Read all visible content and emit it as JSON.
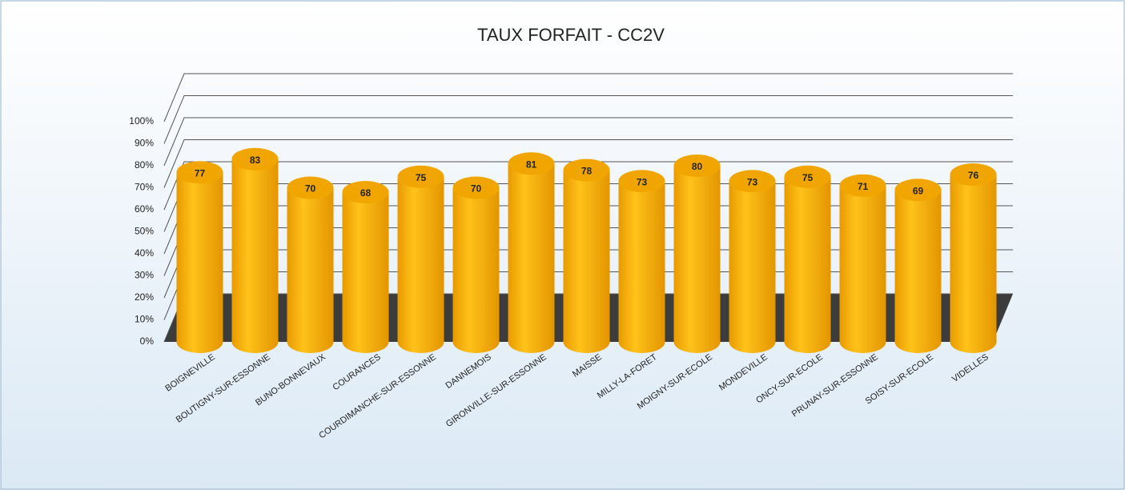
{
  "chart_data": {
    "type": "bar",
    "title": "TAUX FORFAIT - CC2V",
    "categories": [
      "BOIGNEVILLE",
      "BOUTIGNY-SUR-ESSONNE",
      "BUNO-BONNEVAUX",
      "COURANCES",
      "COURDIMANCHE-SUR-ESSONNE",
      "DANNEMOIS",
      "GIRONVILLE-SUR-ESSONNE",
      "MAISSE",
      "MILLY-LA-FORET",
      "MOIGNY-SUR-ECOLE",
      "MONDEVILLE",
      "ONCY-SUR-ECOLE",
      "PRUNAY-SUR-ESSONNE",
      "SOISY-SUR-ECOLE",
      "VIDELLES"
    ],
    "values": [
      77,
      83,
      70,
      68,
      75,
      70,
      81,
      78,
      73,
      80,
      73,
      75,
      71,
      69,
      76
    ],
    "color": "#f2a900",
    "ylim": [
      0,
      100
    ],
    "yticks": [
      {
        "value": 0,
        "label": "0%"
      },
      {
        "value": 10,
        "label": "10%"
      },
      {
        "value": 20,
        "label": "20%"
      },
      {
        "value": 30,
        "label": "30%"
      },
      {
        "value": 40,
        "label": "40%"
      },
      {
        "value": 50,
        "label": "50%"
      },
      {
        "value": 60,
        "label": "60%"
      },
      {
        "value": 70,
        "label": "70%"
      },
      {
        "value": 80,
        "label": "80%"
      },
      {
        "value": 90,
        "label": "90%"
      },
      {
        "value": 100,
        "label": "100%"
      }
    ],
    "grid": true
  }
}
